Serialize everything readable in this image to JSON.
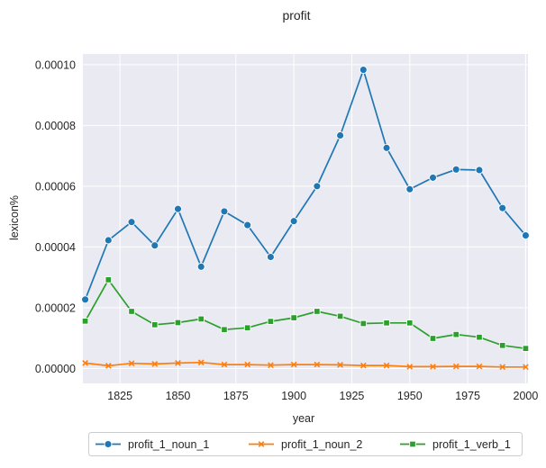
{
  "chart_data": {
    "type": "line",
    "title": "profit",
    "xlabel": "year",
    "ylabel": "lexicon%",
    "xlim": [
      1809,
      2001
    ],
    "ylim": [
      -4.9e-06,
      0.0001035
    ],
    "x_ticks": [
      1825,
      1850,
      1875,
      1900,
      1925,
      1950,
      1975,
      2000
    ],
    "x_tick_labels": [
      "1825",
      "1850",
      "1875",
      "1900",
      "1925",
      "1950",
      "1975",
      "2000"
    ],
    "y_ticks": [
      0,
      2e-05,
      4e-05,
      6e-05,
      8e-05,
      0.0001
    ],
    "y_tick_labels": [
      "0.00000",
      "0.00002",
      "0.00004",
      "0.00006",
      "0.00008",
      "0.00010"
    ],
    "grid": true,
    "legend_position": "bottom-center",
    "x": [
      1810,
      1820,
      1830,
      1840,
      1850,
      1860,
      1870,
      1880,
      1890,
      1900,
      1910,
      1920,
      1930,
      1940,
      1950,
      1960,
      1970,
      1980,
      1990,
      2000
    ],
    "series": [
      {
        "name": "profit_1_noun_1",
        "color": "#1f77b4",
        "marker": "circle",
        "values": [
          2.27e-05,
          4.22e-05,
          4.82e-05,
          4.05e-05,
          5.25e-05,
          3.35e-05,
          5.17e-05,
          4.72e-05,
          3.67e-05,
          4.85e-05,
          6e-05,
          7.67e-05,
          9.83e-05,
          7.26e-05,
          5.9e-05,
          6.28e-05,
          6.55e-05,
          6.53e-05,
          5.28e-05,
          4.38e-05
        ]
      },
      {
        "name": "profit_1_noun_2",
        "color": "#ff7f0e",
        "marker": "x",
        "values": [
          1.8e-06,
          9e-07,
          1.7e-06,
          1.5e-06,
          1.8e-06,
          2e-06,
          1.3e-06,
          1.3e-06,
          1.1e-06,
          1.3e-06,
          1.3e-06,
          1.2e-06,
          1e-06,
          1e-06,
          6e-07,
          6e-07,
          7e-07,
          7e-07,
          5e-07,
          5e-07
        ]
      },
      {
        "name": "profit_1_verb_1",
        "color": "#2ca02c",
        "marker": "square",
        "values": [
          1.56e-05,
          2.92e-05,
          1.88e-05,
          1.44e-05,
          1.51e-05,
          1.63e-05,
          1.28e-05,
          1.34e-05,
          1.55e-05,
          1.67e-05,
          1.88e-05,
          1.72e-05,
          1.48e-05,
          1.5e-05,
          1.5e-05,
          9.9e-06,
          1.12e-05,
          1.03e-05,
          7.6e-06,
          6.6e-06
        ]
      }
    ]
  }
}
